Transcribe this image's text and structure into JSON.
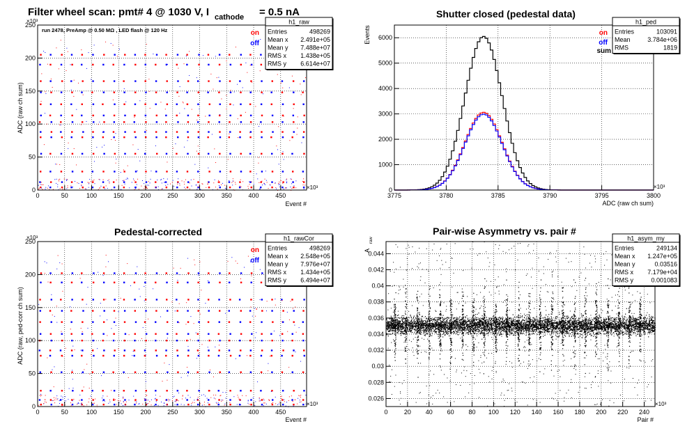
{
  "canvas_title": {
    "main": "Filter wheel scan: pmt#   4 @  1030 V, I",
    "sub": "cathode",
    "tail": "= 0.5 nA"
  },
  "chart_data": [
    {
      "id": "raw",
      "type": "scatter",
      "title": "",
      "annotation": "run 2478, PreAmp @ 0.50 MΩ , LED flash @  120 Hz",
      "xlabel": "Event #",
      "ylabel": "ADC (raw ch sum)",
      "x_exponent": "×10³",
      "y_exponent": "×10³",
      "xlim": [
        0,
        498
      ],
      "ylim": [
        0,
        250
      ],
      "xticks": [
        "0",
        "50",
        "100",
        "150",
        "200",
        "250",
        "300",
        "350",
        "400",
        "450"
      ],
      "yticks": [
        "0",
        "50",
        "100",
        "150",
        "200",
        "250"
      ],
      "legend": [
        {
          "label": "on",
          "color": "#ff0000"
        },
        {
          "label": "off",
          "color": "#0000ff"
        }
      ],
      "stats": {
        "name": "h1_raw",
        "rows": [
          [
            "Entries",
            "498269"
          ],
          [
            "Mean x",
            "2.491e+05"
          ],
          [
            "Mean y",
            "7.488e+07"
          ],
          [
            "RMS x",
            "1.438e+05"
          ],
          [
            "RMS y",
            "6.614e+07"
          ]
        ]
      },
      "levels": [
        4,
        12,
        28,
        55,
        80,
        88,
        103,
        113,
        130,
        148,
        165,
        190,
        205
      ],
      "step_period": 19.5
    },
    {
      "id": "ped",
      "type": "line",
      "title": "Shutter closed (pedestal data)",
      "xlabel": "ADC (raw ch sum)",
      "ylabel": "Events",
      "x_exponent": "×10³",
      "xlim": [
        3775,
        3800
      ],
      "ylim": [
        0,
        6500
      ],
      "xticks": [
        "3775",
        "3780",
        "3785",
        "3790",
        "3795",
        "3800"
      ],
      "yticks": [
        "0",
        "1000",
        "2000",
        "3000",
        "4000",
        "5000",
        "6000"
      ],
      "legend": [
        {
          "label": "on",
          "color": "#ff0000"
        },
        {
          "label": "off",
          "color": "#0000ff"
        },
        {
          "label": "sum",
          "color": "#000000"
        }
      ],
      "stats": {
        "name": "h1_ped",
        "rows": [
          [
            "Entries",
            "103091"
          ],
          [
            "Mean",
            "3.784e+06"
          ],
          [
            "RMS",
            "1819"
          ]
        ]
      },
      "series": [
        {
          "name": "sum",
          "color": "#000000",
          "mean": 3783.6,
          "sigma": 1.8,
          "peak": 6050
        },
        {
          "name": "on",
          "color": "#ff0000",
          "mean": 3783.6,
          "sigma": 1.8,
          "peak": 3060
        },
        {
          "name": "off",
          "color": "#0000ff",
          "mean": 3783.6,
          "sigma": 1.8,
          "peak": 2990
        }
      ]
    },
    {
      "id": "rawcor",
      "type": "scatter",
      "title": "Pedestal-corrected",
      "xlabel": "Event #",
      "ylabel": "ADC (raw, ped-corr ch sum)",
      "x_exponent": "×10³",
      "y_exponent": "×10³",
      "xlim": [
        0,
        498
      ],
      "ylim": [
        0,
        250
      ],
      "xticks": [
        "0",
        "50",
        "100",
        "150",
        "200",
        "250",
        "300",
        "350",
        "400",
        "450"
      ],
      "yticks": [
        "0",
        "50",
        "100",
        "150",
        "200",
        "250"
      ],
      "legend": [
        {
          "label": "on",
          "color": "#ff0000"
        },
        {
          "label": "off",
          "color": "#0000ff"
        }
      ],
      "stats": {
        "name": "h1_rawCor",
        "rows": [
          [
            "Entries",
            "498269"
          ],
          [
            "Mean x",
            "2.548e+05"
          ],
          [
            "Mean y",
            "7.976e+07"
          ],
          [
            "RMS x",
            "1.434e+05"
          ],
          [
            "RMS y",
            "6.494e+07"
          ]
        ]
      },
      "levels": [
        3,
        10,
        24,
        52,
        77,
        85,
        100,
        110,
        128,
        145,
        162,
        188,
        202
      ],
      "step_period": 19.5
    },
    {
      "id": "asym",
      "type": "scatter",
      "title": "Pair-wise Asymmetry vs. pair #",
      "xlabel": "Pair #",
      "ylabel": "A",
      "ylabel_sub": "raw",
      "x_exponent": "×10³",
      "xlim": [
        0,
        250
      ],
      "ylim": [
        0.025,
        0.0455
      ],
      "xticks": [
        "0",
        "20",
        "40",
        "60",
        "80",
        "100",
        "120",
        "140",
        "160",
        "180",
        "200",
        "220",
        "240"
      ],
      "yticks": [
        "0.026",
        "0.028",
        "0.03",
        "0.032",
        "0.034",
        "0.036",
        "0.038",
        "0.04",
        "0.042",
        "0.044"
      ],
      "stats": {
        "name": "h1_asym_my",
        "rows": [
          [
            "Entries",
            "249134"
          ],
          [
            "Mean x",
            "1.247e+05"
          ],
          [
            "Mean y",
            "0.03516"
          ],
          [
            "RMS x",
            "7.179e+04"
          ],
          [
            "RMS y",
            "0.001083"
          ]
        ]
      },
      "band_center": 0.0351,
      "band_halfwidth": 0.0011,
      "spike_positions": [
        8,
        18,
        29,
        40,
        50,
        60,
        71,
        81,
        91,
        102,
        112,
        123,
        133,
        143,
        154,
        164,
        175,
        185,
        195,
        206,
        216,
        226,
        236
      ]
    }
  ]
}
